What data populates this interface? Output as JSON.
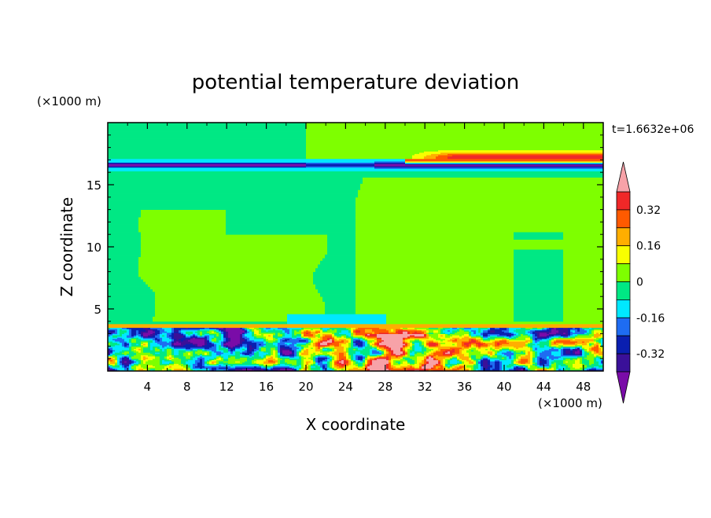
{
  "chart_data": {
    "type": "heatmap",
    "title": "potential temperature deviation",
    "time_label": "t=1.6632e+06",
    "xlabel": "X coordinate",
    "ylabel": "Z coordinate",
    "x_unit": "(×1000 m)",
    "y_unit": "(×1000 m)",
    "xlim": [
      0,
      50
    ],
    "ylim": [
      0,
      20
    ],
    "x_ticks": [
      4,
      8,
      12,
      16,
      20,
      24,
      28,
      32,
      36,
      40,
      44,
      48
    ],
    "y_ticks": [
      5,
      10,
      15
    ],
    "colorbar": {
      "levels": [
        -0.4,
        -0.32,
        -0.24,
        -0.16,
        -0.08,
        0,
        0.08,
        0.16,
        0.24,
        0.32,
        0.4
      ],
      "colors": [
        "#7a0ca8",
        "#3a1099",
        "#0a1fb0",
        "#1e6cf2",
        "#00e8ff",
        "#00e884",
        "#7eff00",
        "#f8ff00",
        "#ffae00",
        "#ff5a00",
        "#f02828",
        "#f7a2a8"
      ],
      "labels": [
        "0.32",
        "0.16",
        "0",
        "-0.16",
        "-0.32"
      ],
      "label_values": [
        0.32,
        0.16,
        0,
        -0.16,
        -0.32
      ],
      "extend": "both"
    },
    "background_color": "#00e884",
    "features": [
      {
        "name": "tropopause cold band",
        "x_range": [
          0,
          50
        ],
        "z": 16.6,
        "value": -0.3
      },
      {
        "name": "upper warm layer",
        "x_range": [
          30,
          50
        ],
        "z": 17.0,
        "value": 0.3
      },
      {
        "name": "warm upper-right region",
        "x_range": [
          26,
          50
        ],
        "z_range": [
          3.5,
          16
        ],
        "value": 0.04
      },
      {
        "name": "warm mid-left region",
        "x_range": [
          3,
          22
        ],
        "z_range": [
          4,
          13
        ],
        "value": 0.04
      },
      {
        "name": "boundary layer warm anomaly",
        "x_range": [
          24,
          34
        ],
        "z_range": [
          0,
          3
        ],
        "value": 0.45
      },
      {
        "name": "boundary layer cold anomaly",
        "x_range": [
          4,
          18
        ],
        "z_range": [
          0,
          3
        ],
        "value": -0.42
      }
    ]
  }
}
